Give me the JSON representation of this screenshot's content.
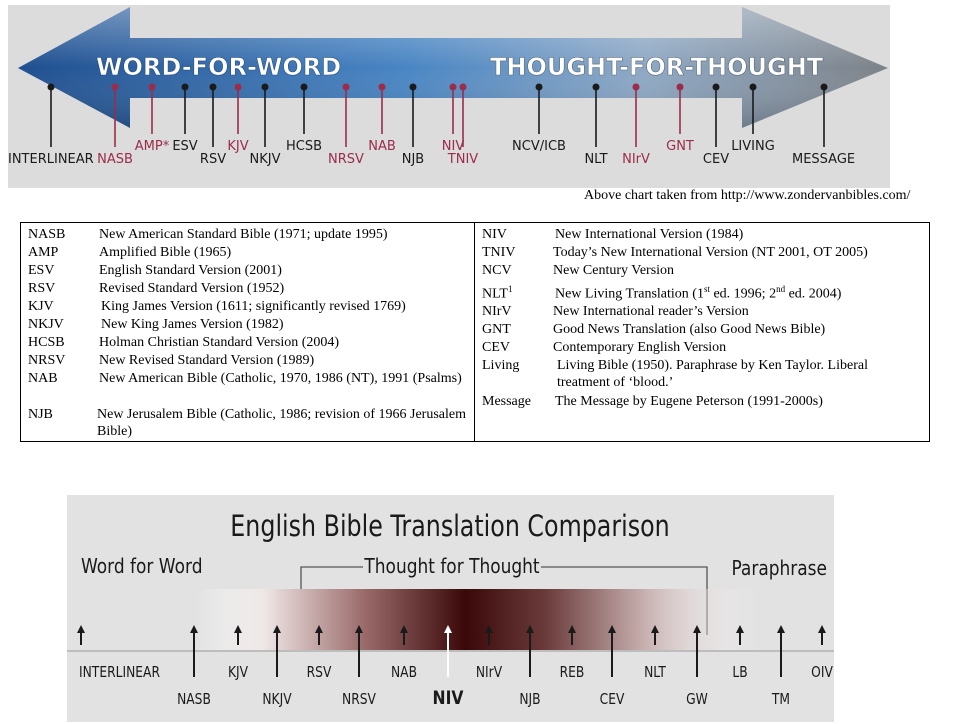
{
  "top_chart": {
    "left_label": "WORD-FOR-WORD",
    "right_label": "THOUGHT-FOR-THOUGHT",
    "colors": {
      "arrow_left": "#2e5f9e",
      "arrow_right": "#8a8f96",
      "background": "#dcdcdc",
      "black_marker": "#1a1a1a",
      "red_marker": "#9b2c4a"
    },
    "markers": [
      {
        "label": "INTERLINEAR",
        "color": "black",
        "low": true
      },
      {
        "label": "NASB",
        "color": "red",
        "low": true
      },
      {
        "label": "AMP*",
        "color": "red",
        "low": false
      },
      {
        "label": "ESV",
        "color": "black",
        "low": false
      },
      {
        "label": "RSV",
        "color": "black",
        "low": true
      },
      {
        "label": "KJV",
        "color": "red",
        "low": false
      },
      {
        "label": "NKJV",
        "color": "black",
        "low": true
      },
      {
        "label": "HCSB",
        "color": "black",
        "low": false
      },
      {
        "label": "NRSV",
        "color": "red",
        "low": true
      },
      {
        "label": "NAB",
        "color": "red",
        "low": false
      },
      {
        "label": "NJB",
        "color": "black",
        "low": true
      },
      {
        "label": "NIV",
        "color": "red",
        "low": false
      },
      {
        "label": "TNIV",
        "color": "red",
        "low": true
      },
      {
        "label": "NCV/ICB",
        "color": "black",
        "low": false
      },
      {
        "label": "NLT",
        "color": "black",
        "low": true
      },
      {
        "label": "NIrV",
        "color": "red",
        "low": true
      },
      {
        "label": "GNT",
        "color": "red",
        "low": false
      },
      {
        "label": "CEV",
        "color": "black",
        "low": true
      },
      {
        "label": "LIVING",
        "color": "black",
        "low": false
      },
      {
        "label": "MESSAGE",
        "color": "black",
        "low": true
      }
    ]
  },
  "source_note": "Above chart taken from http://www.zondervanbibles.com/",
  "legend": {
    "left": [
      {
        "abbr": "NASB",
        "full": "New American Standard Bible (1971; update 1995)"
      },
      {
        "abbr": "AMP",
        "full": "Amplified Bible (1965)"
      },
      {
        "abbr": "ESV",
        "full": "English Standard Version (2001)"
      },
      {
        "abbr": "RSV",
        "full": "Revised Standard Version (1952)"
      },
      {
        "abbr": "KJV",
        "full": "King James Version (1611; significantly revised 1769)"
      },
      {
        "abbr": "NKJV",
        "full": "New King James Version (1982)"
      },
      {
        "abbr": "HCSB",
        "full": "Holman Christian Standard Version (2004)"
      },
      {
        "abbr": "NRSV",
        "full": "New Revised Standard Version (1989)"
      },
      {
        "abbr": "NAB",
        "full": "New American Bible (Catholic, 1970, 1986 (NT), 1991 (Psalms)"
      },
      {
        "abbr": "NJB",
        "full": "New Jerusalem Bible (Catholic, 1986; revision of 1966 Jerusalem Bible)"
      }
    ],
    "right": [
      {
        "abbr": "NIV",
        "full": "New International Version (1984)"
      },
      {
        "abbr": "TNIV",
        "full": "Today’s New International Version (NT 2001, OT 2005)"
      },
      {
        "abbr": "NCV",
        "full": "New Century Version"
      },
      {
        "abbr": "NLT",
        "abbr_sup": "1",
        "full_parts": [
          "New Living Translation (1",
          "st",
          " ed. 1996; 2",
          "nd",
          " ed. 2004)"
        ]
      },
      {
        "abbr": "NIrV",
        "full": "New International reader’s Version"
      },
      {
        "abbr": "GNT",
        "full": "Good News Translation (also Good News Bible)"
      },
      {
        "abbr": "CEV",
        "full": "Contemporary English Version"
      },
      {
        "abbr": "Living",
        "full": "Living Bible (1950). Paraphrase by Ken Taylor. Liberal treatment of ‘blood.’"
      },
      {
        "abbr": "Message",
        "full": "The Message by Eugene Peterson (1991-2000s)"
      }
    ]
  },
  "bottom_chart": {
    "title": "English Bible Translation Comparison",
    "left_label": "Word for Word",
    "middle_label": "Thought for Thought",
    "right_label": "Paraphrase",
    "colors": {
      "gradient_dark": "#3a0808",
      "background": "#e2e2e2",
      "text": "#1a1a1a",
      "highlight_arrow": "#ffffff"
    },
    "markers": [
      {
        "label": "INTERLINEAR",
        "low": false
      },
      {
        "label": "NASB",
        "low": true
      },
      {
        "label": "KJV",
        "low": false
      },
      {
        "label": "NKJV",
        "low": true
      },
      {
        "label": "RSV",
        "low": false
      },
      {
        "label": "NRSV",
        "low": true
      },
      {
        "label": "NAB",
        "low": false
      },
      {
        "label": "NIV",
        "low": true,
        "bold": true
      },
      {
        "label": "NIrV",
        "low": false
      },
      {
        "label": "NJB",
        "low": true
      },
      {
        "label": "REB",
        "low": false
      },
      {
        "label": "CEV",
        "low": true
      },
      {
        "label": "NLT",
        "low": false
      },
      {
        "label": "GW",
        "low": true
      },
      {
        "label": "LB",
        "low": false
      },
      {
        "label": "TM",
        "low": true
      },
      {
        "label": "OIV",
        "low": false
      }
    ]
  }
}
